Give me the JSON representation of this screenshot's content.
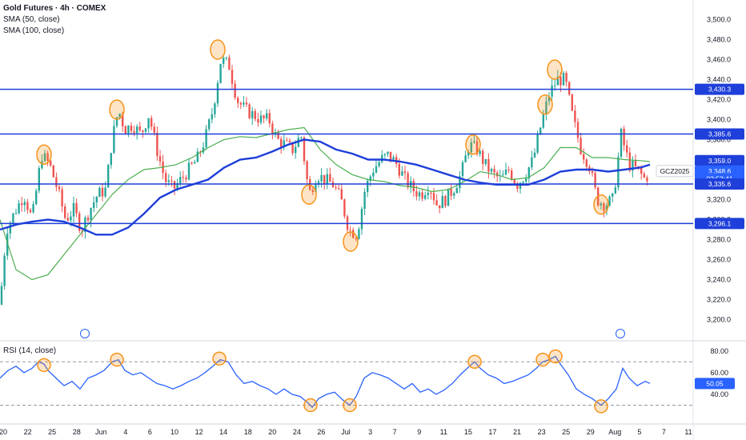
{
  "header": {
    "title": "Gold Futures · 4h · COMEX",
    "indicators": [
      "SMA (50, close)",
      "SMA (100, close)"
    ]
  },
  "rsi_panel": {
    "title": "RSI (14, close)"
  },
  "colors": {
    "up": "#26a69a",
    "down": "#ef5350",
    "level": "#1e3fd9",
    "sma50": "#4caf50",
    "sma100": "#1e3fd9",
    "rsi": "#2962ff",
    "marker": "#f7931a",
    "text": "#131722"
  },
  "chart_data": [
    {
      "type": "candlestick",
      "title": "Gold Futures · 4h · COMEX",
      "ylim": [
        3190,
        3510
      ],
      "y_ticks": [
        "3,500.0",
        "3,480.0",
        "3,460.0",
        "3,440.0",
        "3,420.0",
        "3,400.0",
        "3,380.0",
        "3,360.0",
        "3,340.0",
        "3,320.0",
        "3,300.0",
        "3,280.0",
        "3,260.0",
        "3,240.0",
        "3,220.0",
        "3,200.0"
      ],
      "x_ticks": [
        "20",
        "22",
        "25",
        "28",
        "Jun",
        "4",
        "6",
        "10",
        "12",
        "14",
        "18",
        "20",
        "24",
        "26",
        "Jul",
        "3",
        "7",
        "9",
        "11",
        "15",
        "17",
        "21",
        "23",
        "25",
        "29",
        "Aug",
        "5",
        "7",
        "11"
      ],
      "horizontal_levels": [
        3430.3,
        3385.6,
        3335.6,
        3296.1
      ],
      "price_labels": [
        {
          "text": "3,430.3",
          "value": 3430.3,
          "kind": "level"
        },
        {
          "text": "3,385.6",
          "value": 3385.6,
          "kind": "level"
        },
        {
          "text": "3,359.0",
          "value": 3359.0,
          "kind": "sma"
        },
        {
          "text": "3,348.6",
          "value": 3348.6,
          "kind": "last"
        },
        {
          "text": "03:53:41",
          "value": 3341.0,
          "kind": "countdown"
        },
        {
          "text": "3,335.6",
          "value": 3335.6,
          "kind": "level"
        },
        {
          "text": "3,296.1",
          "value": 3296.1,
          "kind": "level"
        }
      ],
      "symbol_tag": "GCZ2025",
      "last_price": 3348.6,
      "close_path": [
        [
          0,
          3215
        ],
        [
          8,
          3290
        ],
        [
          20,
          3310
        ],
        [
          30,
          3325
        ],
        [
          40,
          3300
        ],
        [
          52,
          3365
        ],
        [
          62,
          3355
        ],
        [
          72,
          3330
        ],
        [
          82,
          3300
        ],
        [
          92,
          3310
        ],
        [
          102,
          3290
        ],
        [
          112,
          3310
        ],
        [
          122,
          3325
        ],
        [
          132,
          3330
        ],
        [
          140,
          3380
        ],
        [
          148,
          3410
        ],
        [
          156,
          3390
        ],
        [
          166,
          3395
        ],
        [
          176,
          3385
        ],
        [
          186,
          3405
        ],
        [
          196,
          3370
        ],
        [
          206,
          3340
        ],
        [
          216,
          3330
        ],
        [
          226,
          3340
        ],
        [
          236,
          3350
        ],
        [
          246,
          3360
        ],
        [
          256,
          3380
        ],
        [
          266,
          3410
        ],
        [
          276,
          3460
        ],
        [
          286,
          3455
        ],
        [
          296,
          3420
        ],
        [
          306,
          3410
        ],
        [
          316,
          3405
        ],
        [
          326,
          3400
        ],
        [
          336,
          3400
        ],
        [
          346,
          3380
        ],
        [
          356,
          3375
        ],
        [
          366,
          3370
        ],
        [
          376,
          3385
        ],
        [
          386,
          3325
        ],
        [
          396,
          3345
        ],
        [
          406,
          3340
        ],
        [
          416,
          3335
        ],
        [
          426,
          3320
        ],
        [
          436,
          3290
        ],
        [
          446,
          3285
        ],
        [
          456,
          3330
        ],
        [
          466,
          3350
        ],
        [
          476,
          3360
        ],
        [
          486,
          3365
        ],
        [
          496,
          3355
        ],
        [
          506,
          3340
        ],
        [
          516,
          3330
        ],
        [
          526,
          3325
        ],
        [
          536,
          3335
        ],
        [
          546,
          3315
        ],
        [
          556,
          3320
        ],
        [
          566,
          3330
        ],
        [
          576,
          3345
        ],
        [
          586,
          3375
        ],
        [
          596,
          3370
        ],
        [
          606,
          3355
        ],
        [
          616,
          3345
        ],
        [
          626,
          3340
        ],
        [
          636,
          3350
        ],
        [
          646,
          3335
        ],
        [
          656,
          3345
        ],
        [
          666,
          3360
        ],
        [
          676,
          3395
        ],
        [
          686,
          3425
        ],
        [
          696,
          3440
        ],
        [
          706,
          3440
        ],
        [
          716,
          3400
        ],
        [
          726,
          3370
        ],
        [
          736,
          3355
        ],
        [
          746,
          3320
        ],
        [
          756,
          3315
        ],
        [
          766,
          3320
        ],
        [
          776,
          3385
        ],
        [
          786,
          3355
        ],
        [
          796,
          3350
        ],
        [
          806,
          3340
        ],
        [
          812,
          3348.6
        ]
      ],
      "series": [
        {
          "name": "SMA (50, close)",
          "points": [
            [
              0,
              3300
            ],
            [
              20,
              3250
            ],
            [
              40,
              3240
            ],
            [
              60,
              3245
            ],
            [
              80,
              3265
            ],
            [
              100,
              3285
            ],
            [
              120,
              3305
            ],
            [
              140,
              3325
            ],
            [
              160,
              3340
            ],
            [
              180,
              3350
            ],
            [
              200,
              3352
            ],
            [
              220,
              3355
            ],
            [
              240,
              3362
            ],
            [
              260,
              3372
            ],
            [
              280,
              3380
            ],
            [
              300,
              3383
            ],
            [
              320,
              3382
            ],
            [
              340,
              3386
            ],
            [
              360,
              3390
            ],
            [
              380,
              3392
            ],
            [
              400,
              3370
            ],
            [
              420,
              3355
            ],
            [
              440,
              3345
            ],
            [
              460,
              3340
            ],
            [
              480,
              3338
            ],
            [
              500,
              3334
            ],
            [
              520,
              3332
            ],
            [
              540,
              3328
            ],
            [
              560,
              3330
            ],
            [
              580,
              3338
            ],
            [
              600,
              3348
            ],
            [
              620,
              3345
            ],
            [
              640,
              3340
            ],
            [
              660,
              3342
            ],
            [
              680,
              3352
            ],
            [
              700,
              3372
            ],
            [
              720,
              3372
            ],
            [
              740,
              3362
            ],
            [
              760,
              3362
            ],
            [
              780,
              3360
            ],
            [
              800,
              3359
            ],
            [
              812,
              3358
            ]
          ]
        },
        {
          "name": "SMA (100, close)",
          "points": [
            [
              0,
              3290
            ],
            [
              20,
              3295
            ],
            [
              40,
              3298
            ],
            [
              60,
              3300
            ],
            [
              80,
              3298
            ],
            [
              100,
              3292
            ],
            [
              120,
              3285
            ],
            [
              140,
              3285
            ],
            [
              160,
              3292
            ],
            [
              180,
              3306
            ],
            [
              200,
              3322
            ],
            [
              220,
              3330
            ],
            [
              240,
              3335
            ],
            [
              260,
              3340
            ],
            [
              280,
              3352
            ],
            [
              300,
              3360
            ],
            [
              320,
              3362
            ],
            [
              340,
              3368
            ],
            [
              360,
              3375
            ],
            [
              380,
              3380
            ],
            [
              400,
              3378
            ],
            [
              420,
              3370
            ],
            [
              440,
              3366
            ],
            [
              460,
              3360
            ],
            [
              480,
              3360
            ],
            [
              500,
              3358
            ],
            [
              520,
              3355
            ],
            [
              540,
              3350
            ],
            [
              560,
              3345
            ],
            [
              580,
              3340
            ],
            [
              600,
              3337
            ],
            [
              620,
              3335
            ],
            [
              640,
              3335
            ],
            [
              660,
              3335
            ],
            [
              680,
              3340
            ],
            [
              700,
              3348
            ],
            [
              720,
              3350
            ],
            [
              740,
              3350
            ],
            [
              760,
              3348
            ],
            [
              780,
              3350
            ],
            [
              800,
              3352
            ],
            [
              812,
              3355
            ]
          ]
        }
      ],
      "highlight_markers_price": [
        [
          55,
          3365
        ],
        [
          146,
          3410
        ],
        [
          272,
          3470
        ],
        [
          386,
          3325
        ],
        [
          438,
          3278
        ],
        [
          591,
          3375
        ],
        [
          681,
          3415
        ],
        [
          693,
          3450
        ],
        [
          751,
          3315
        ]
      ],
      "event_markers": [
        [
          106
        ],
        [
          775
        ]
      ]
    },
    {
      "type": "line",
      "title": "RSI (14, close)",
      "ylim": [
        20,
        85
      ],
      "y_ticks": [
        "80.00",
        "60.00",
        "40.00"
      ],
      "levels": [
        70,
        30
      ],
      "last_value": 50.05,
      "last_label": "50.05",
      "series": [
        {
          "name": "RSI (14, close)",
          "points": [
            [
              0,
              55
            ],
            [
              10,
              62
            ],
            [
              20,
              66
            ],
            [
              30,
              60
            ],
            [
              40,
              64
            ],
            [
              48,
              70
            ],
            [
              55,
              68
            ],
            [
              60,
              62
            ],
            [
              70,
              55
            ],
            [
              80,
              48
            ],
            [
              90,
              52
            ],
            [
              100,
              45
            ],
            [
              110,
              55
            ],
            [
              120,
              58
            ],
            [
              130,
              62
            ],
            [
              140,
              70
            ],
            [
              148,
              72
            ],
            [
              156,
              62
            ],
            [
              166,
              58
            ],
            [
              176,
              60
            ],
            [
              186,
              55
            ],
            [
              196,
              50
            ],
            [
              206,
              48
            ],
            [
              216,
              45
            ],
            [
              226,
              48
            ],
            [
              236,
              52
            ],
            [
              246,
              55
            ],
            [
              256,
              60
            ],
            [
              266,
              66
            ],
            [
              275,
              72
            ],
            [
              285,
              70
            ],
            [
              295,
              58
            ],
            [
              305,
              50
            ],
            [
              315,
              52
            ],
            [
              325,
              48
            ],
            [
              335,
              45
            ],
            [
              345,
              40
            ],
            [
              355,
              45
            ],
            [
              365,
              40
            ],
            [
              375,
              38
            ],
            [
              385,
              32
            ],
            [
              390,
              28
            ],
            [
              398,
              36
            ],
            [
              408,
              40
            ],
            [
              418,
              42
            ],
            [
              428,
              35
            ],
            [
              437,
              30
            ],
            [
              445,
              38
            ],
            [
              455,
              55
            ],
            [
              465,
              60
            ],
            [
              475,
              58
            ],
            [
              485,
              55
            ],
            [
              495,
              50
            ],
            [
              505,
              45
            ],
            [
              515,
              50
            ],
            [
              525,
              42
            ],
            [
              535,
              45
            ],
            [
              545,
              40
            ],
            [
              555,
              44
            ],
            [
              565,
              50
            ],
            [
              575,
              58
            ],
            [
              585,
              65
            ],
            [
              593,
              70
            ],
            [
              600,
              64
            ],
            [
              610,
              58
            ],
            [
              620,
              55
            ],
            [
              630,
              50
            ],
            [
              640,
              52
            ],
            [
              650,
              55
            ],
            [
              660,
              58
            ],
            [
              670,
              64
            ],
            [
              678,
              70
            ],
            [
              686,
              72
            ],
            [
              694,
              75
            ],
            [
              700,
              68
            ],
            [
              710,
              58
            ],
            [
              720,
              45
            ],
            [
              730,
              40
            ],
            [
              740,
              36
            ],
            [
              751,
              30
            ],
            [
              760,
              36
            ],
            [
              770,
              45
            ],
            [
              778,
              64
            ],
            [
              786,
              55
            ],
            [
              796,
              48
            ],
            [
              806,
              52
            ],
            [
              812,
              50.05
            ]
          ]
        }
      ],
      "highlight_markers": [
        [
          55,
          67
        ],
        [
          146,
          72
        ],
        [
          274,
          73
        ],
        [
          388,
          30
        ],
        [
          437,
          30
        ],
        [
          593,
          70
        ],
        [
          678,
          72
        ],
        [
          694,
          75
        ],
        [
          751,
          29
        ]
      ]
    }
  ]
}
